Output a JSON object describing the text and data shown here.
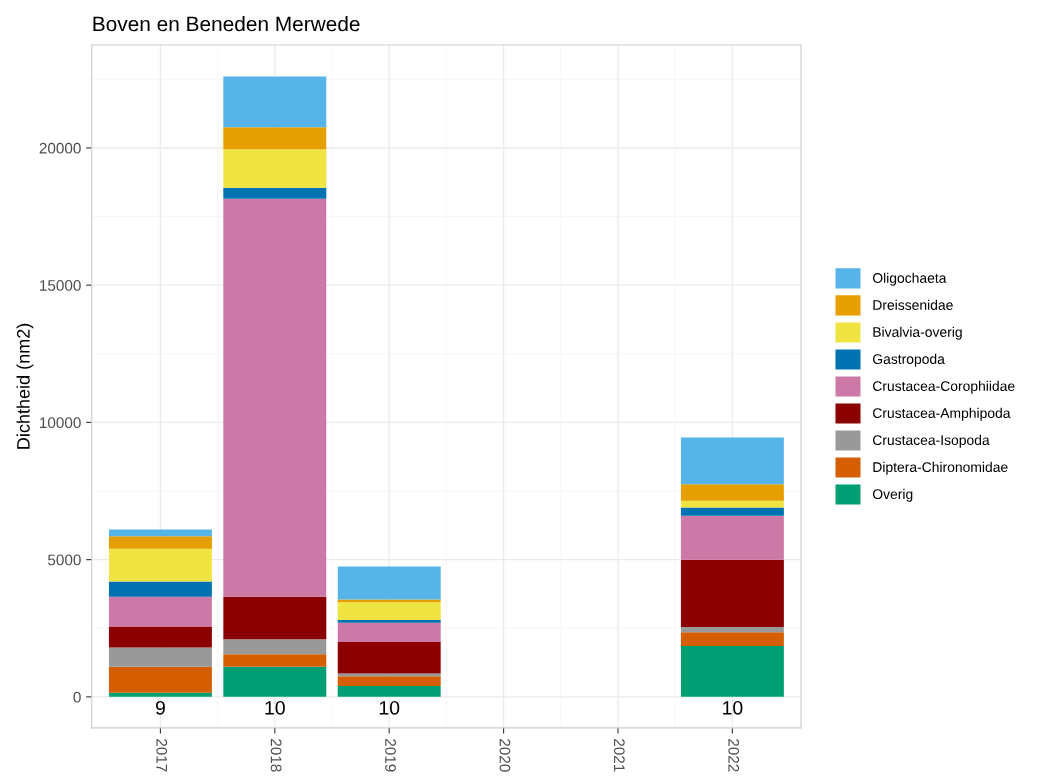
{
  "chart_data": {
    "type": "bar",
    "title": "Boven en Beneden Merwede",
    "ylabel": "Dichtheid (nm2)",
    "stacked": true,
    "grid": true,
    "legend": "right",
    "categories": [
      "2017",
      "2018",
      "2019",
      "2020",
      "2021",
      "2022"
    ],
    "ylim": [
      -1130,
      23750
    ],
    "yticks": [
      0,
      5000,
      10000,
      15000,
      20000
    ],
    "series": [
      {
        "name": "Overig",
        "color": "#009e73",
        "values": [
          150,
          1100,
          400,
          null,
          null,
          1850
        ]
      },
      {
        "name": "Diptera-Chironomidae",
        "color": "#d55e00",
        "values": [
          950,
          450,
          350,
          null,
          null,
          500
        ]
      },
      {
        "name": "Crustacea-Isopoda",
        "color": "#999999",
        "values": [
          700,
          550,
          100,
          null,
          null,
          200
        ]
      },
      {
        "name": "Crustacea-Amphipoda",
        "color": "#8b0000",
        "values": [
          750,
          1550,
          1150,
          null,
          null,
          2450
        ]
      },
      {
        "name": "Crustacea-Corophiidae",
        "color": "#cc79a7",
        "values": [
          1100,
          14500,
          700,
          null,
          null,
          1600
        ]
      },
      {
        "name": "Gastropoda",
        "color": "#0072b2",
        "values": [
          550,
          400,
          100,
          null,
          null,
          300
        ]
      },
      {
        "name": "Bivalvia-overig",
        "color": "#f0e442",
        "values": [
          1200,
          1400,
          650,
          null,
          null,
          250
        ]
      },
      {
        "name": "Dreissenidae",
        "color": "#e69f00",
        "values": [
          450,
          800,
          100,
          null,
          null,
          600
        ]
      },
      {
        "name": "Oligochaeta",
        "color": "#56b4e9",
        "values": [
          250,
          1850,
          1200,
          null,
          null,
          1700
        ]
      }
    ],
    "annotations": [
      "9",
      "10",
      "10",
      "10"
    ]
  }
}
